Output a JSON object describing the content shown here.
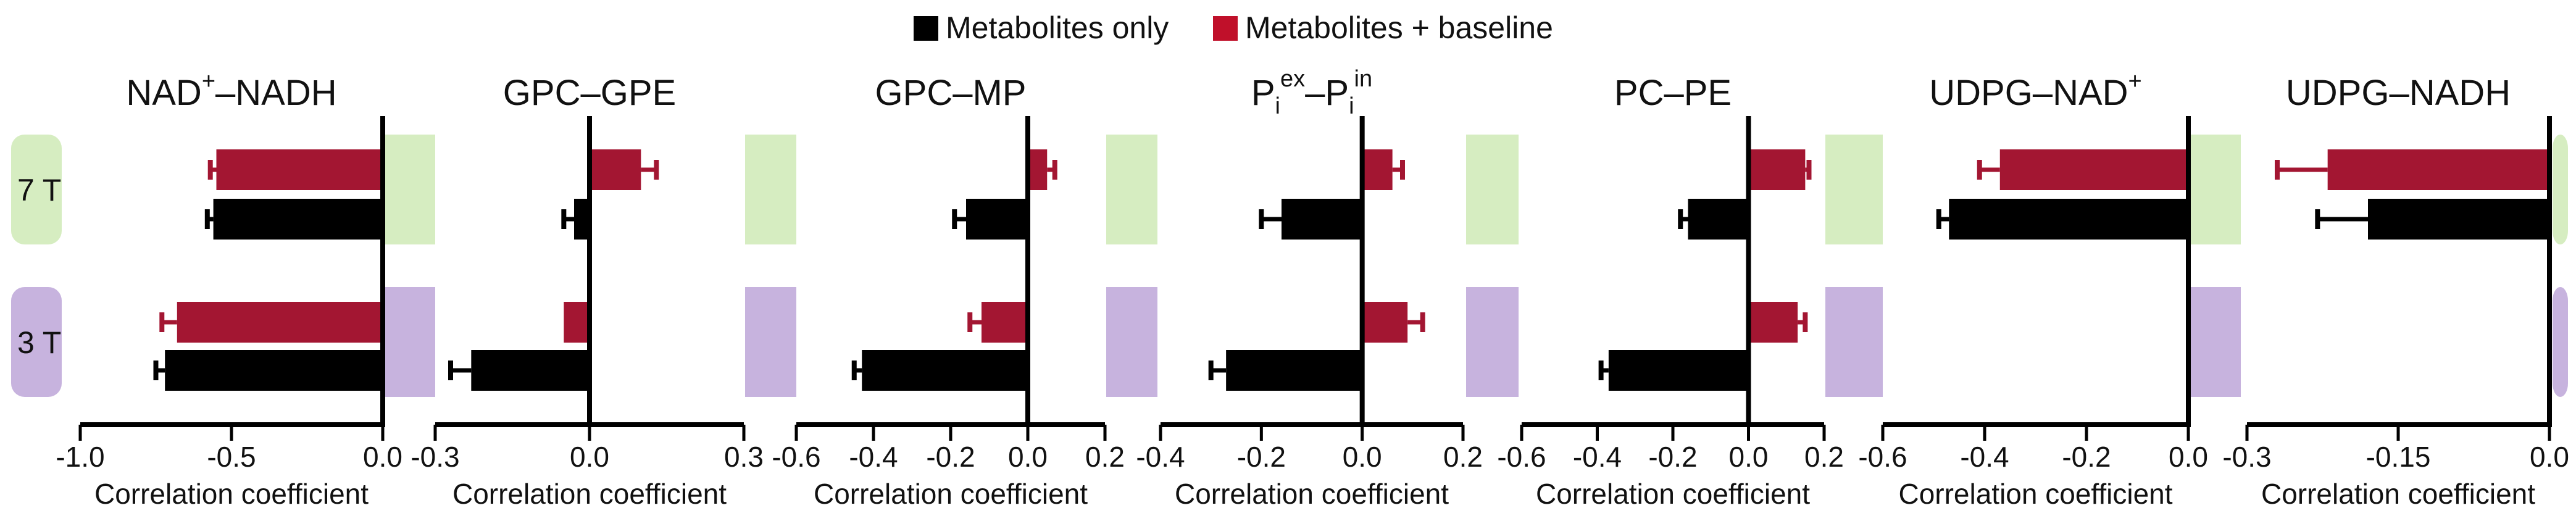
{
  "chart_data": {
    "type": "bar",
    "orientation": "horizontal",
    "legend": [
      {
        "name": "Metabolites only",
        "color": "#000000"
      },
      {
        "name": "Metabolites + baseline",
        "color": "#c0102a"
      }
    ],
    "row_labels": [
      "7 T",
      "3 T"
    ],
    "row_colors": {
      "7 T": "#d6edc1",
      "3 T": "#c7b3de"
    },
    "bar_colors": {
      "metabolites_only": "#000000",
      "metabolites_baseline": "#a31632"
    },
    "xlabel": "Correlation coefficient",
    "panels": [
      {
        "title_main": "NAD",
        "title_sup": "+",
        "title_rest": "–NADH",
        "xlim": [
          -1.0,
          0.0
        ],
        "ticks": [
          "-1.0",
          "-0.5",
          "0.0"
        ],
        "tick_values": [
          -1.0,
          -0.5,
          0.0
        ],
        "series": [
          {
            "name": "Metabolites + baseline",
            "values": [
              -0.55,
              -0.68
            ],
            "errors": [
              0.02,
              0.05
            ]
          },
          {
            "name": "Metabolites only",
            "values": [
              -0.56,
              -0.72
            ],
            "errors": [
              0.02,
              0.03
            ]
          }
        ]
      },
      {
        "title_main": "GPC–GPE",
        "xlim": [
          -0.3,
          0.3
        ],
        "ticks": [
          "-0.3",
          "0.0",
          "0.3"
        ],
        "tick_values": [
          -0.3,
          0.0,
          0.3
        ],
        "series": [
          {
            "name": "Metabolites + baseline",
            "values": [
              0.1,
              -0.05
            ],
            "errors": [
              0.03,
              0.0
            ]
          },
          {
            "name": "Metabolites only",
            "values": [
              -0.03,
              -0.23
            ],
            "errors": [
              0.02,
              0.04
            ]
          }
        ]
      },
      {
        "title_main": "GPC–MP",
        "xlim": [
          -0.6,
          0.2
        ],
        "ticks": [
          "-0.6",
          "-0.4",
          "-0.2",
          "0.0",
          "0.2"
        ],
        "tick_values": [
          -0.6,
          -0.4,
          -0.2,
          0.0,
          0.2
        ],
        "series": [
          {
            "name": "Metabolites + baseline",
            "values": [
              0.05,
              -0.12
            ],
            "errors": [
              0.02,
              0.03
            ]
          },
          {
            "name": "Metabolites only",
            "values": [
              -0.16,
              -0.43
            ],
            "errors": [
              0.03,
              0.02
            ]
          }
        ]
      },
      {
        "title_main": "P",
        "title_sub1": "i",
        "title_sup": "ex",
        "title_rest": "–P",
        "title_sub2": "i",
        "title_sup2": "in",
        "xlim": [
          -0.4,
          0.2
        ],
        "ticks": [
          "-0.4",
          "-0.2",
          "0.0",
          "0.2"
        ],
        "tick_values": [
          -0.4,
          -0.2,
          0.0,
          0.2
        ],
        "series": [
          {
            "name": "Metabolites + baseline",
            "values": [
              0.06,
              0.09
            ],
            "errors": [
              0.02,
              0.03
            ]
          },
          {
            "name": "Metabolites only",
            "values": [
              -0.16,
              -0.27
            ],
            "errors": [
              0.04,
              0.03
            ]
          }
        ]
      },
      {
        "title_main": "PC–PE",
        "xlim": [
          -0.6,
          0.2
        ],
        "ticks": [
          "-0.6",
          "-0.4",
          "-0.2",
          "0.0",
          "0.2"
        ],
        "tick_values": [
          -0.6,
          -0.4,
          -0.2,
          0.0,
          0.2
        ],
        "series": [
          {
            "name": "Metabolites + baseline",
            "values": [
              0.15,
              0.13
            ],
            "errors": [
              0.01,
              0.02
            ]
          },
          {
            "name": "Metabolites only",
            "values": [
              -0.16,
              -0.37
            ],
            "errors": [
              0.02,
              0.02
            ]
          }
        ]
      },
      {
        "title_main": "UDPG–NAD",
        "title_sup": "+",
        "xlim": [
          -0.6,
          0.0
        ],
        "ticks": [
          "-0.6",
          "-0.4",
          "-0.2",
          "0.0"
        ],
        "tick_values": [
          -0.6,
          -0.4,
          -0.2,
          0.0
        ],
        "series": [
          {
            "name": "Metabolites + baseline",
            "values": [
              -0.37,
              0.0
            ],
            "errors": [
              0.04,
              0.0
            ]
          },
          {
            "name": "Metabolites only",
            "values": [
              -0.47,
              0.0
            ],
            "errors": [
              0.02,
              0.0
            ]
          }
        ]
      },
      {
        "title_main": "UDPG–NADH",
        "xlim": [
          -0.3,
          0.0
        ],
        "ticks": [
          "-0.3",
          "-0.15",
          "0.0"
        ],
        "tick_values": [
          -0.3,
          -0.15,
          0.0
        ],
        "series": [
          {
            "name": "Metabolites + baseline",
            "values": [
              -0.22,
              0.0
            ],
            "errors": [
              0.05,
              0.0
            ]
          },
          {
            "name": "Metabolites only",
            "values": [
              -0.18,
              0.0
            ],
            "errors": [
              0.05,
              0.0
            ]
          }
        ]
      }
    ]
  }
}
